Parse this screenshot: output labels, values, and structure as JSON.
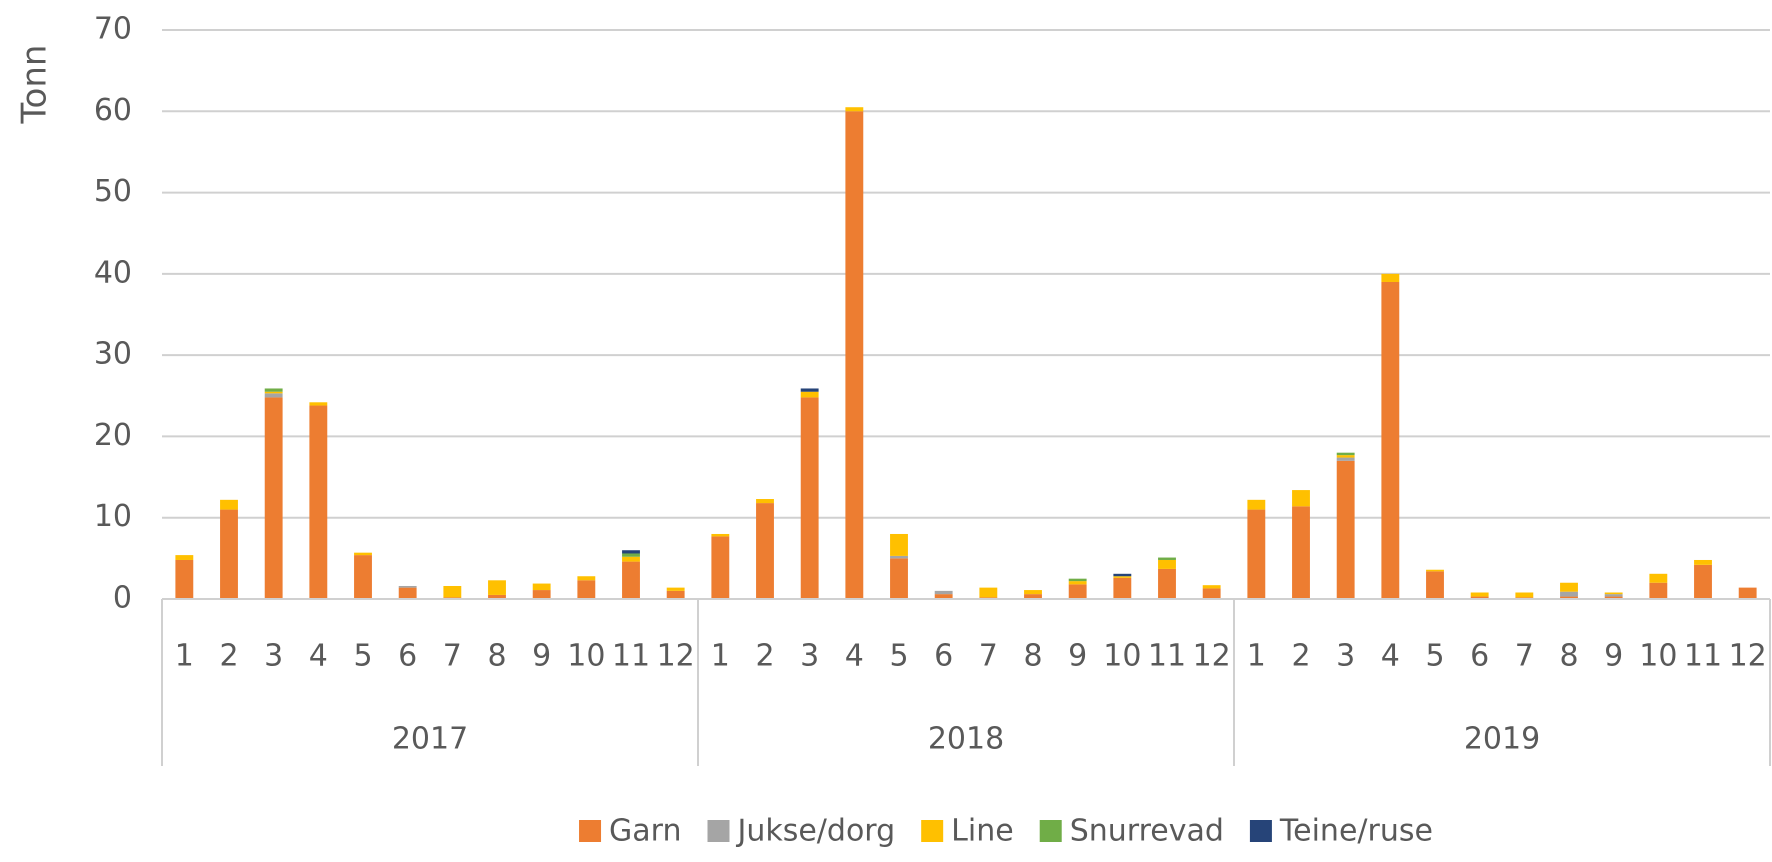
{
  "chart_data": {
    "type": "stacked_bar",
    "y_label": "Tonn",
    "groups": [
      "2017",
      "2018",
      "2019"
    ],
    "categories": [
      "1",
      "2",
      "3",
      "4",
      "5",
      "6",
      "7",
      "8",
      "9",
      "10",
      "11",
      "12",
      "1",
      "2",
      "3",
      "4",
      "5",
      "6",
      "7",
      "8",
      "9",
      "10",
      "11",
      "12",
      "1",
      "2",
      "3",
      "4",
      "5",
      "6",
      "7",
      "8",
      "9",
      "10",
      "11",
      "12"
    ],
    "ylim": [
      0,
      70
    ],
    "yticks": [
      0,
      10,
      20,
      30,
      40,
      50,
      60,
      70
    ],
    "grid": true,
    "legend": "bottom",
    "series": [
      {
        "name": "Garn",
        "color": "#ed7d31",
        "values": [
          4.8,
          11,
          24.8,
          23.8,
          5.4,
          1.4,
          0.2,
          0.5,
          1.1,
          2.3,
          4.6,
          1,
          7.7,
          11.8,
          24.8,
          60,
          5,
          0.6,
          0.2,
          0.6,
          1.8,
          2.6,
          3.7,
          1.3,
          11,
          11.4,
          17,
          39,
          3.4,
          0.3,
          0.2,
          0.3,
          0.3,
          2,
          4.2,
          1.4
        ]
      },
      {
        "name": "Jukse/dorg",
        "color": "#a5a5a5",
        "values": [
          0,
          0,
          0.5,
          0,
          0,
          0.2,
          0,
          0,
          0,
          0,
          0,
          0,
          0,
          0,
          0,
          0,
          0.3,
          0.4,
          0,
          0,
          0,
          0,
          0,
          0,
          0,
          0,
          0.4,
          0,
          0,
          0,
          0,
          0.6,
          0.3,
          0,
          0,
          0
        ]
      },
      {
        "name": "Line",
        "color": "#ffc000",
        "values": [
          0.6,
          1.2,
          0.2,
          0.4,
          0.3,
          0,
          1.4,
          1.8,
          0.8,
          0.5,
          0.6,
          0.4,
          0.3,
          0.5,
          0.7,
          0.5,
          2.7,
          0,
          1.2,
          0.5,
          0.4,
          0.2,
          1.1,
          0.4,
          1.2,
          2,
          0.3,
          1,
          0.2,
          0.5,
          0.6,
          1.1,
          0.2,
          1.1,
          0.6,
          0
        ]
      },
      {
        "name": "Snurrevad",
        "color": "#70ad47",
        "values": [
          0,
          0,
          0.4,
          0,
          0,
          0,
          0,
          0,
          0,
          0,
          0.4,
          0,
          0,
          0,
          0,
          0,
          0,
          0,
          0,
          0,
          0.3,
          0,
          0.3,
          0,
          0,
          0,
          0.3,
          0,
          0,
          0,
          0,
          0,
          0,
          0,
          0,
          0
        ]
      },
      {
        "name": "Teine/ruse",
        "color": "#264478",
        "values": [
          0,
          0,
          0,
          0,
          0,
          0,
          0,
          0,
          0,
          0,
          0.4,
          0,
          0,
          0,
          0.4,
          0,
          0,
          0,
          0,
          0,
          0,
          0.3,
          0,
          0,
          0,
          0,
          0,
          0,
          0,
          0,
          0,
          0,
          0,
          0,
          0,
          0
        ]
      }
    ]
  }
}
